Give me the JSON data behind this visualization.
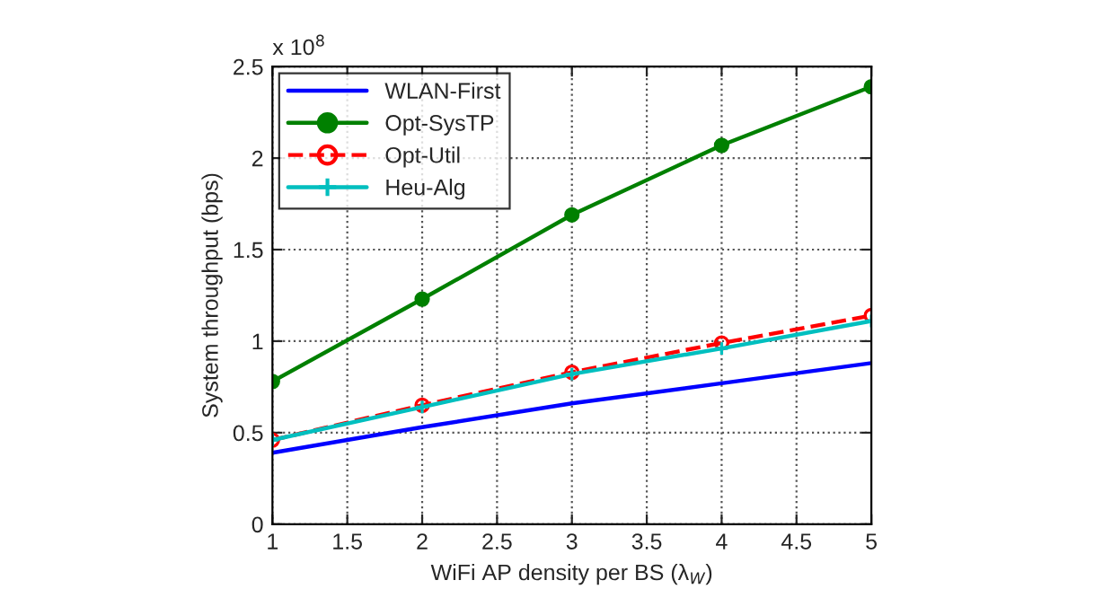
{
  "chart_data": {
    "type": "line",
    "xlabel": "WiFi AP density per BS (λ$_{W}$)",
    "ylabel": "System throughput (bps)",
    "annotations": [
      "x 10$^{8}$"
    ],
    "x": [
      1,
      2,
      3,
      4,
      5
    ],
    "series": [
      {
        "name": "WLAN-First",
        "color": "#0000ff",
        "marker": "none",
        "line_style": "solid",
        "values": [
          0.39,
          0.53,
          0.66,
          0.77,
          0.88
        ]
      },
      {
        "name": "Opt-SysTP",
        "color": "#008000",
        "marker": "circle",
        "line_style": "solid",
        "values": [
          0.78,
          1.23,
          1.69,
          2.07,
          2.39
        ]
      },
      {
        "name": "Opt-Util",
        "color": "#ff0000",
        "marker": "circle",
        "line_style": "dashed",
        "values": [
          0.46,
          0.65,
          0.83,
          0.99,
          1.14
        ]
      },
      {
        "name": "Heu-Alg",
        "color": "#00bfbf",
        "marker": "cross",
        "line_style": "solid",
        "values": [
          0.46,
          0.64,
          0.82,
          0.96,
          1.11
        ]
      }
    ],
    "xlim": [
      1,
      5
    ],
    "xticks": [
      1,
      1.5,
      2,
      2.5,
      3,
      3.5,
      4,
      4.5,
      5
    ],
    "ylim": [
      0,
      2.5
    ],
    "yticks": [
      0,
      0.5,
      1,
      1.5,
      2,
      2.5
    ],
    "grid": true,
    "legend": "top left"
  }
}
